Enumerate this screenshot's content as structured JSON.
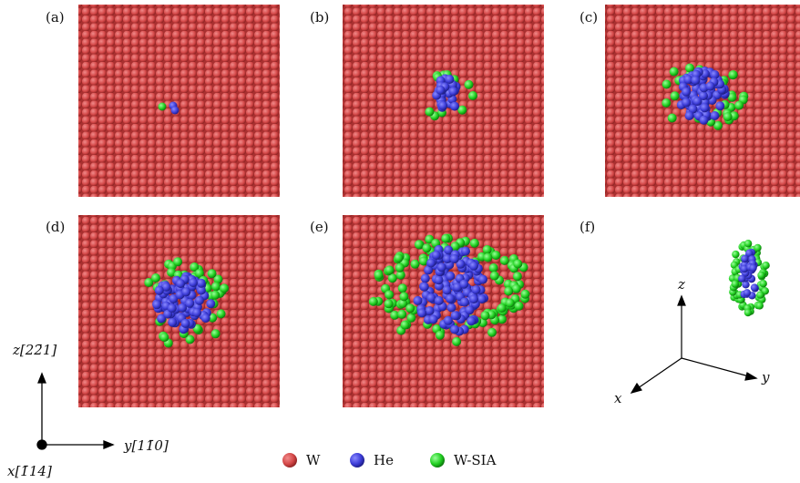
{
  "panels": [
    "(a)",
    "(b)",
    "(c)",
    "(d)",
    "(e)",
    "(f)"
  ],
  "axes": {
    "z": "z[22̄1]",
    "y": "y[11̄0]",
    "x": "x[1̄14]"
  },
  "inset_axes": {
    "z": "z",
    "y": "y",
    "x": "x"
  },
  "legend": [
    "W",
    "He",
    "W-SIA"
  ]
}
